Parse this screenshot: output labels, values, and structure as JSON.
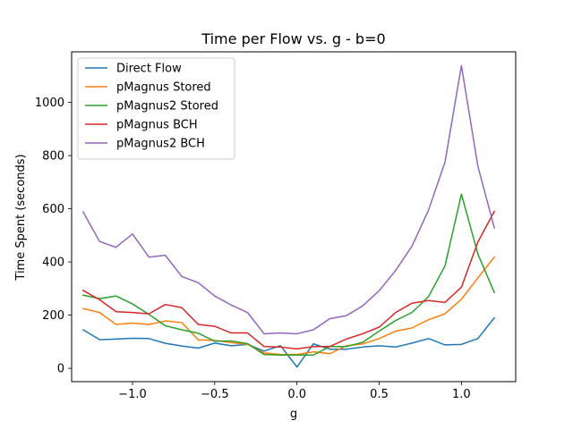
{
  "chart_data": {
    "type": "line",
    "title": "Time per Flow vs. g - b=0",
    "xlabel": "g",
    "ylabel": "Time Spent (seconds)",
    "xlim": [
      -1.37,
      1.33
    ],
    "ylim": [
      -50,
      1190
    ],
    "xticks": [
      -1.0,
      -0.5,
      0.0,
      0.5,
      1.0
    ],
    "xtick_labels": [
      "−1.0",
      "−0.5",
      "0.0",
      "0.5",
      "1.0"
    ],
    "yticks": [
      0,
      200,
      400,
      600,
      800,
      1000
    ],
    "ytick_labels": [
      "0",
      "200",
      "400",
      "600",
      "800",
      "1000"
    ],
    "grid": false,
    "legend_position": "top-left",
    "x": [
      -1.3,
      -1.2,
      -1.1,
      -1.0,
      -0.9,
      -0.8,
      -0.7,
      -0.6,
      -0.5,
      -0.4,
      -0.3,
      -0.2,
      -0.1,
      0.0,
      0.1,
      0.2,
      0.3,
      0.4,
      0.5,
      0.6,
      0.7,
      0.8,
      0.9,
      1.0,
      1.1,
      1.2
    ],
    "series": [
      {
        "name": "Direct Flow",
        "color": "#1f77b4",
        "values": [
          145,
          108,
          110,
          113,
          112,
          94,
          84,
          76,
          95,
          85,
          90,
          65,
          85,
          5,
          92,
          72,
          72,
          80,
          85,
          80,
          95,
          112,
          88,
          90,
          112,
          190
        ]
      },
      {
        "name": "pMagnus Stored",
        "color": "#ff7f0e",
        "values": [
          225,
          210,
          165,
          170,
          165,
          178,
          172,
          107,
          105,
          97,
          90,
          58,
          52,
          52,
          62,
          55,
          85,
          92,
          112,
          140,
          152,
          183,
          205,
          260,
          340,
          418
        ]
      },
      {
        "name": "pMagnus2 Stored",
        "color": "#2ca02c",
        "values": [
          275,
          262,
          272,
          242,
          203,
          160,
          145,
          132,
          102,
          103,
          93,
          52,
          50,
          50,
          50,
          82,
          82,
          98,
          140,
          180,
          210,
          270,
          385,
          655,
          430,
          285
        ]
      },
      {
        "name": "pMagnus BCH",
        "color": "#d62728",
        "values": [
          293,
          258,
          213,
          210,
          205,
          240,
          228,
          165,
          158,
          133,
          133,
          82,
          80,
          73,
          82,
          82,
          110,
          130,
          155,
          210,
          245,
          255,
          248,
          305,
          475,
          590
        ]
      },
      {
        "name": "pMagnus2 BCH",
        "color": "#9467bd",
        "values": [
          588,
          477,
          455,
          505,
          418,
          425,
          345,
          322,
          272,
          238,
          210,
          130,
          133,
          130,
          145,
          187,
          198,
          235,
          292,
          368,
          460,
          595,
          775,
          1138,
          760,
          528
        ]
      }
    ]
  }
}
